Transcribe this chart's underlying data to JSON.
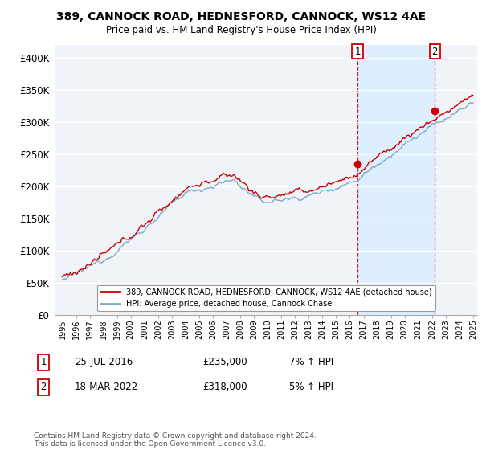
{
  "title_line1": "389, CANNOCK ROAD, HEDNESFORD, CANNOCK, WS12 4AE",
  "title_line2": "Price paid vs. HM Land Registry's House Price Index (HPI)",
  "ylim": [
    0,
    420000
  ],
  "yticks": [
    0,
    50000,
    100000,
    150000,
    200000,
    250000,
    300000,
    350000,
    400000
  ],
  "ytick_labels": [
    "£0",
    "£50K",
    "£100K",
    "£150K",
    "£200K",
    "£250K",
    "£300K",
    "£350K",
    "£400K"
  ],
  "sale1_date": 2016.57,
  "sale1_price": 235000,
  "sale1_label": "25-JUL-2016",
  "sale1_hpi": "7% ↑ HPI",
  "sale2_date": 2022.21,
  "sale2_price": 318000,
  "sale2_label": "18-MAR-2022",
  "sale2_hpi": "5% ↑ HPI",
  "red_color": "#cc0000",
  "blue_color": "#7aaacc",
  "shade_color": "#ddeeff",
  "background_color": "#f0f4f8",
  "grid_color": "#ffffff",
  "legend_label_red": "389, CANNOCK ROAD, HEDNESFORD, CANNOCK, WS12 4AE (detached house)",
  "legend_label_blue": "HPI: Average price, detached house, Cannock Chase",
  "footnote": "Contains HM Land Registry data © Crown copyright and database right 2024.\nThis data is licensed under the Open Government Licence v3.0.",
  "table_row1": [
    "1",
    "25-JUL-2016",
    "£235,000",
    "7% ↑ HPI"
  ],
  "table_row2": [
    "2",
    "18-MAR-2022",
    "£318,000",
    "5% ↑ HPI"
  ],
  "xmin": 1995,
  "xmax": 2025
}
